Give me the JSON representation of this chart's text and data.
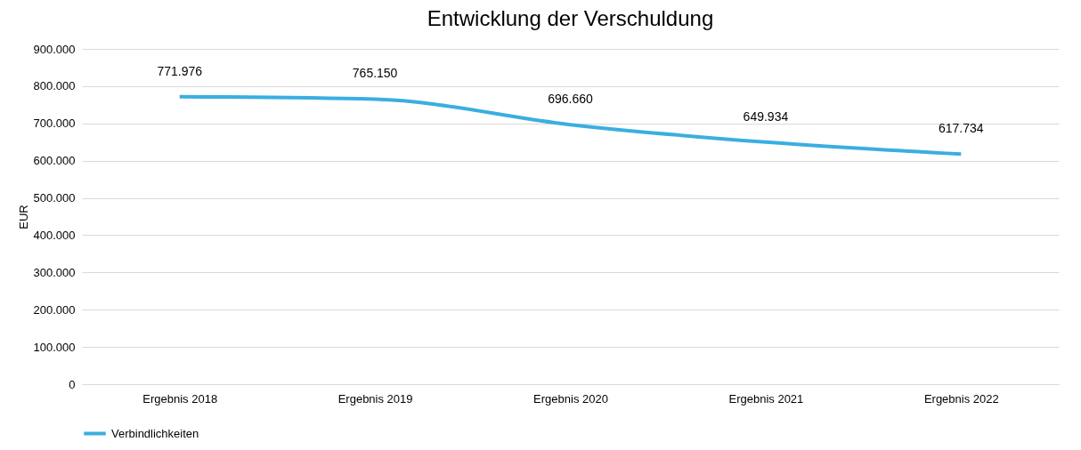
{
  "chart_data": {
    "type": "line",
    "title": "Entwicklung der Verschuldung",
    "ylabel": "EUR",
    "categories": [
      "Ergebnis 2018",
      "Ergebnis 2019",
      "Ergebnis 2020",
      "Ergebnis 2021",
      "Ergebnis 2022"
    ],
    "series": [
      {
        "name": "Verbindlichkeiten",
        "color": "#3aaee0",
        "values": [
          771976,
          765150,
          696660,
          649934,
          617734
        ],
        "value_labels": [
          "771.976",
          "765.150",
          "696.660",
          "649.934",
          "617.734"
        ]
      }
    ],
    "ylim": [
      0,
      900000
    ],
    "yticks": [
      0,
      {
        "value": 100000,
        "label": "100.000"
      },
      {
        "value": 200000,
        "label": "200.000"
      },
      {
        "value": 300000,
        "label": "300.000"
      },
      {
        "value": 400000,
        "label": "400.000"
      },
      {
        "value": 500000,
        "label": "500.000"
      },
      {
        "value": 600000,
        "label": "600.000"
      },
      {
        "value": 700000,
        "label": "700.000"
      },
      {
        "value": 800000,
        "label": "800.000"
      },
      {
        "value": 900000,
        "label": "900.000"
      }
    ],
    "grid": "y",
    "legend": "bottom",
    "marker": "none",
    "line_style": "solid"
  }
}
